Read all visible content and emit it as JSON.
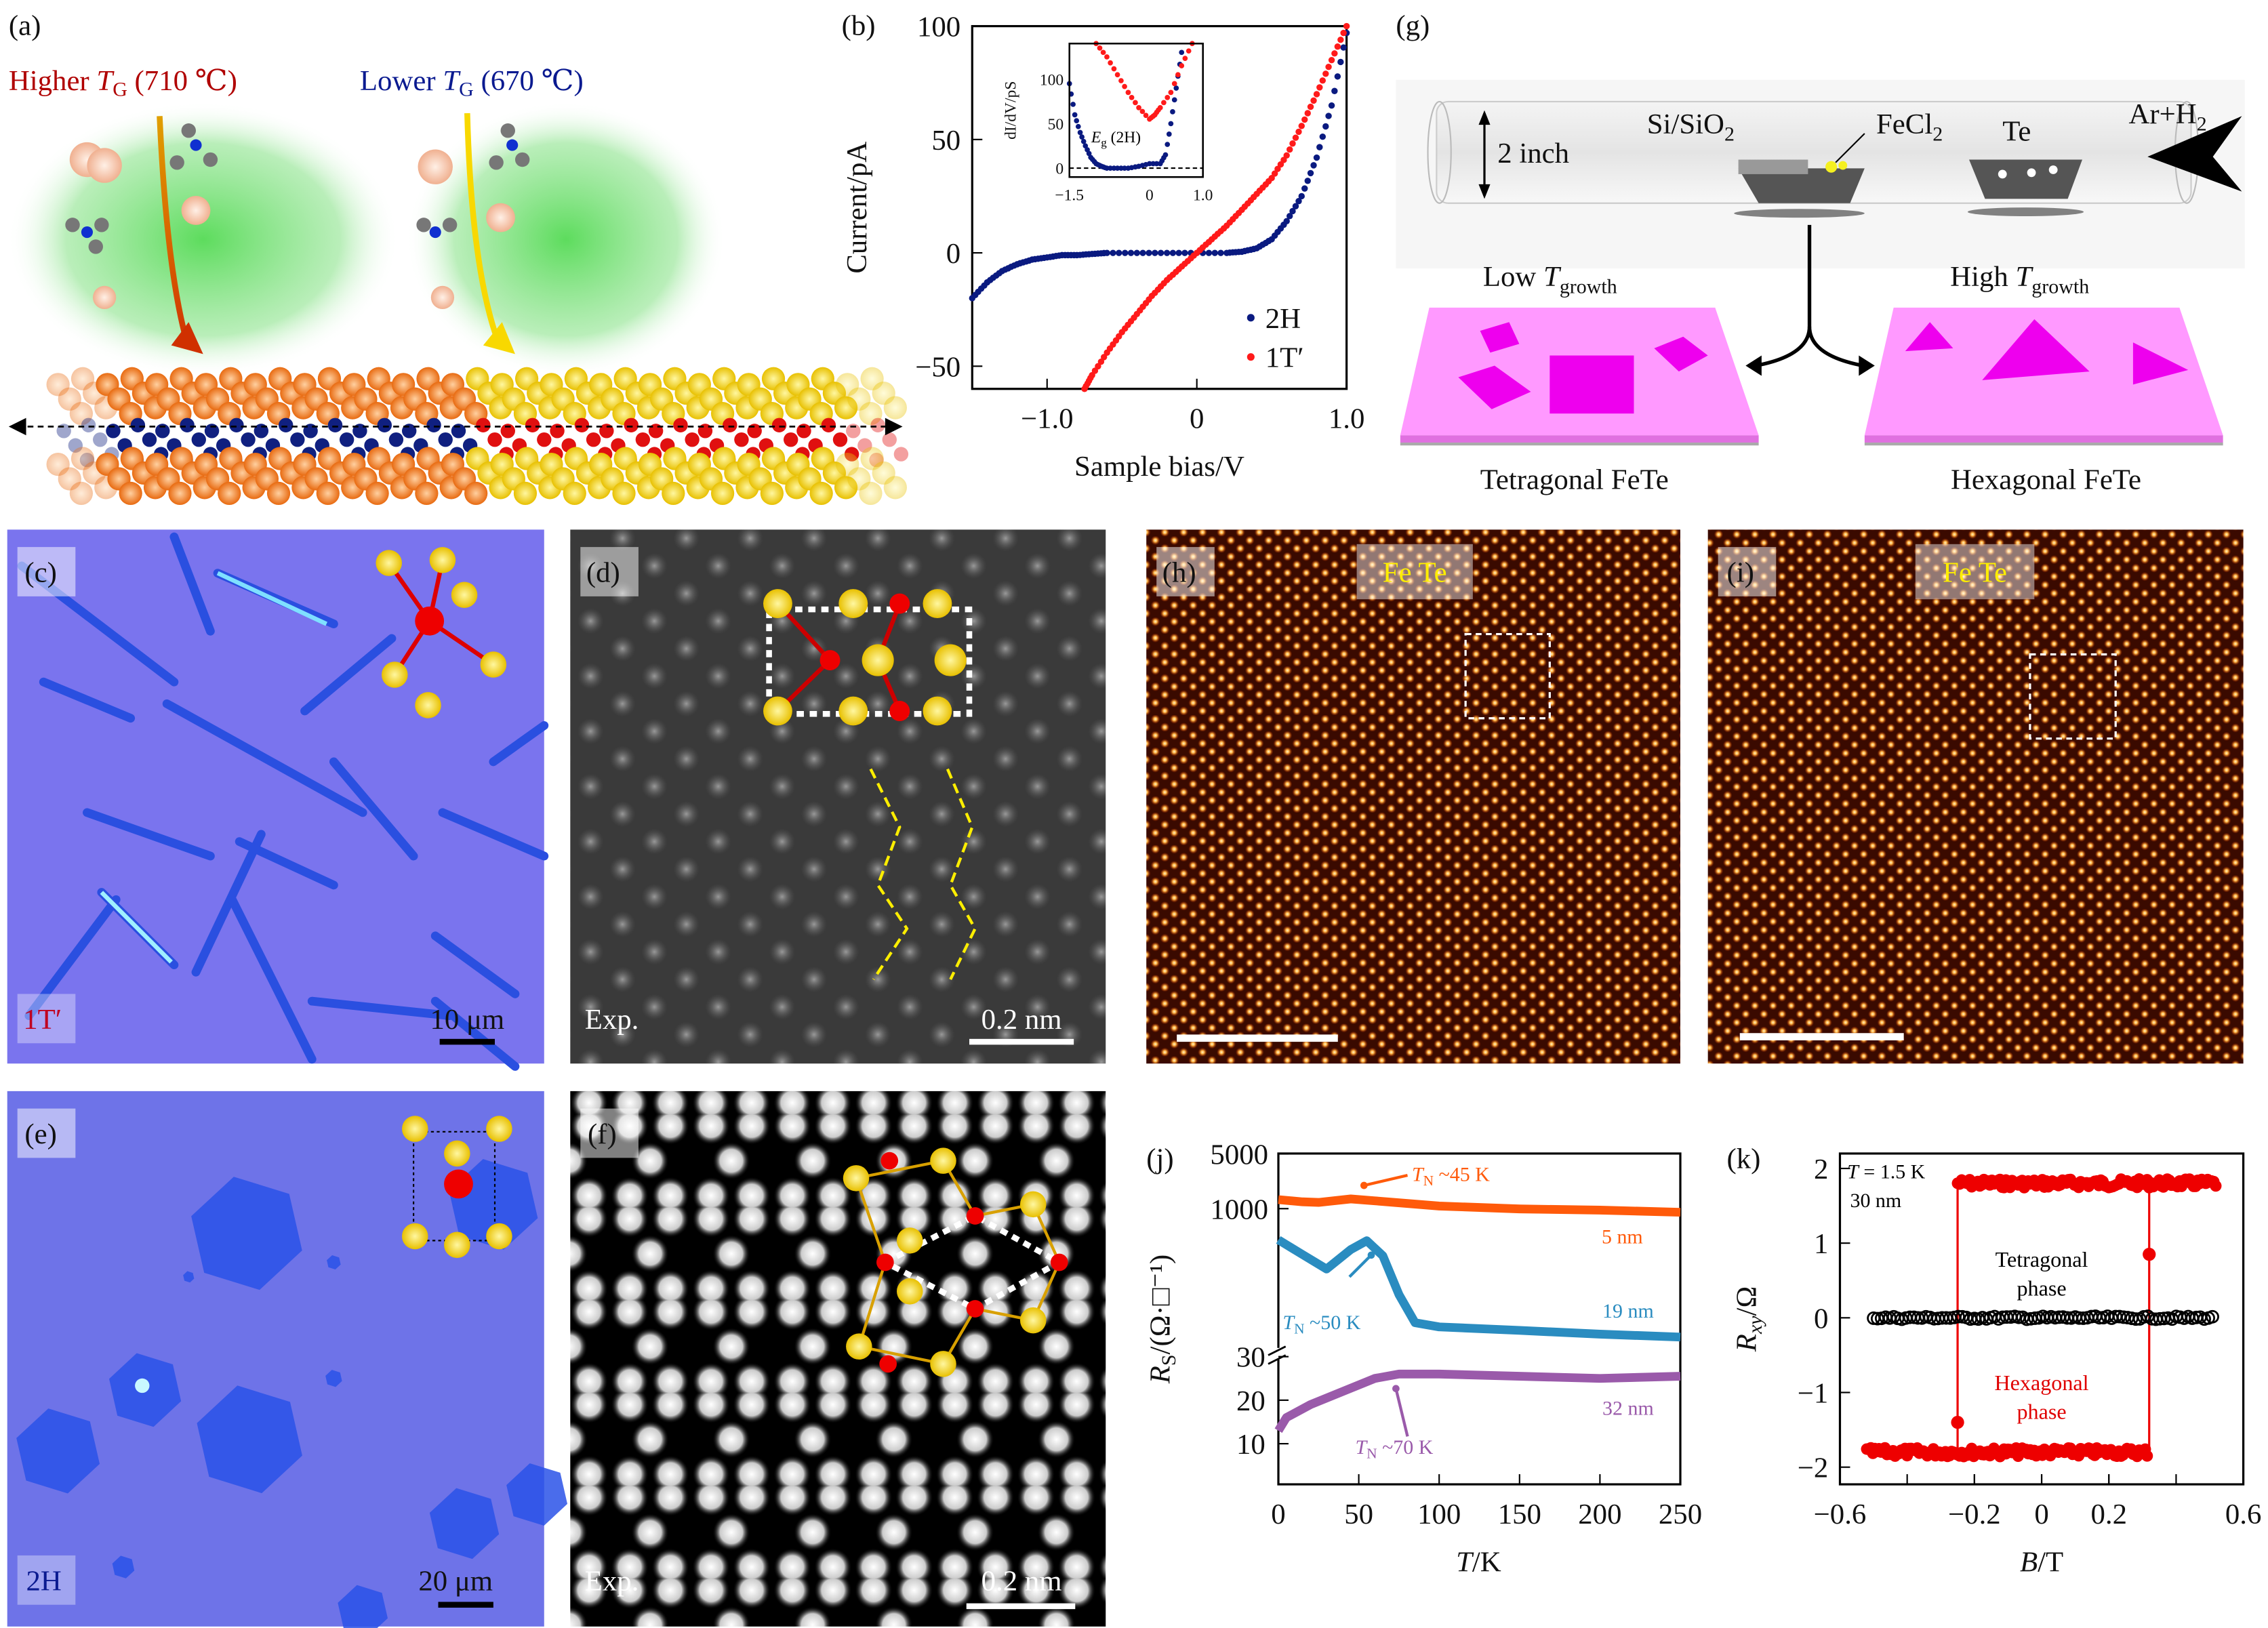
{
  "colors": {
    "red": "#ff1a1a",
    "navy": "#0a1a80",
    "orange": "#ff5a0a",
    "teal": "#2a8cc0",
    "purple": "#9a5aaa",
    "pink": "#ff99ff",
    "magenta": "#ee00ee",
    "dark_red_text": "#b00000"
  },
  "panel_a": {
    "label": "(a)",
    "higher_pre": "Higher ",
    "higher_sym": "T",
    "higher_sub": "G",
    "higher_post": " (710 ℃)",
    "lower_pre": "Lower ",
    "lower_sym": "T",
    "lower_sub": "G",
    "lower_post": " (670 ℃)"
  },
  "panel_g": {
    "label": "(g)",
    "tube_size": "2 inch",
    "substrate": "Si/SiO",
    "substrate_sub": "2",
    "precursor": "FeCl",
    "precursor_sub": "2",
    "source": "Te",
    "gas": "Ar+H",
    "gas_sub": "2",
    "low_pre": "Low ",
    "low_sym": "T",
    "low_sub": "growth",
    "high_pre": "High ",
    "high_sym": "T",
    "high_sub": "growth",
    "left_product": "Tetragonal FeTe",
    "right_product": "Hexagonal FeTe"
  },
  "images": {
    "c": {
      "label": "(c)",
      "phase": "1T′",
      "scale": "10 μm"
    },
    "d": {
      "label": "(d)",
      "tag": "Exp.",
      "scale": "0.2 nm"
    },
    "e": {
      "label": "(e)",
      "phase": "2H",
      "scale": "20 μm"
    },
    "f": {
      "label": "(f)",
      "tag": "Exp.",
      "scale": "0.2 nm"
    },
    "h": {
      "label": "(h)",
      "elements": "Fe  Te"
    },
    "i": {
      "label": "(i)",
      "elements": "Fe  Te"
    }
  },
  "chart_data": [
    {
      "id": "b",
      "type": "scatter",
      "panel_label": "(b)",
      "xlabel": "Sample bias/V",
      "ylabel": "Current/pA",
      "xlim": [
        -1.5,
        1.0
      ],
      "ylim": [
        -60,
        100
      ],
      "xticks": [
        {
          "v": -1.0,
          "t": "−1.0"
        },
        {
          "v": 0,
          "t": "0"
        },
        {
          "v": 1.0,
          "t": "1.0"
        }
      ],
      "yticks": [
        {
          "v": 100,
          "t": "100"
        },
        {
          "v": 50,
          "t": "50"
        },
        {
          "v": 0,
          "t": "0"
        },
        {
          "v": -50,
          "t": "−50"
        }
      ],
      "legend": "bottom-right",
      "series": [
        {
          "name": "2H",
          "color": "#0a1a80",
          "x": [
            -1.5,
            -1.4,
            -1.3,
            -1.2,
            -1.1,
            -1.0,
            -0.9,
            -0.8,
            -0.7,
            -0.6,
            -0.4,
            -0.2,
            0,
            0.2,
            0.3,
            0.4,
            0.5,
            0.6,
            0.7,
            0.8,
            0.9,
            1.0
          ],
          "y": [
            -20,
            -13,
            -8,
            -5,
            -3,
            -2,
            -1,
            -1,
            -0.5,
            0,
            0,
            0,
            0,
            0,
            0.5,
            2,
            6,
            14,
            25,
            42,
            65,
            97
          ]
        },
        {
          "name": "1T′",
          "color": "#ff1a1a",
          "x": [
            -0.75,
            -0.7,
            -0.6,
            -0.5,
            -0.4,
            -0.3,
            -0.2,
            -0.1,
            0,
            0.1,
            0.2,
            0.3,
            0.4,
            0.5,
            0.6,
            0.7,
            0.8,
            0.9,
            1.0
          ],
          "y": [
            -60,
            -54,
            -44,
            -35,
            -27,
            -19,
            -12,
            -6,
            0,
            6,
            12,
            19,
            26,
            33,
            43,
            56,
            70,
            85,
            100
          ]
        }
      ],
      "inset": {
        "type": "scatter",
        "ylabel_num": "dI",
        "ylabel_den": "dV",
        "ylabel_unit": "/pS",
        "annotation_sym": "E",
        "annotation_sub": "g",
        "annotation_post": " (2H)",
        "xlim": [
          -1.5,
          1.0
        ],
        "ylim": [
          -10,
          140
        ],
        "xticks": [
          {
            "v": -1.5,
            "t": "−1.5"
          },
          {
            "v": 0,
            "t": "0"
          },
          {
            "v": 1.0,
            "t": "1.0"
          }
        ],
        "yticks": [
          {
            "v": 100,
            "t": "100"
          },
          {
            "v": 50,
            "t": "50"
          },
          {
            "v": 0,
            "t": "0"
          }
        ],
        "zero_line": "dashed",
        "series": [
          {
            "name": "2H",
            "color": "#0a1a80",
            "x": [
              -1.5,
              -1.4,
              -1.3,
              -1.2,
              -1.1,
              -1.0,
              -0.9,
              -0.8,
              -0.6,
              -0.4,
              -0.2,
              0,
              0.2,
              0.3,
              0.4,
              0.5,
              0.6
            ],
            "y": [
              95,
              60,
              40,
              25,
              12,
              5,
              2,
              0,
              0,
              0,
              2,
              5,
              5,
              15,
              50,
              90,
              130
            ]
          },
          {
            "name": "1T′",
            "color": "#ff1a1a",
            "x": [
              -1.0,
              -0.8,
              -0.6,
              -0.4,
              -0.2,
              0,
              0.1,
              0.2,
              0.4,
              0.6,
              0.8
            ],
            "y": [
              140,
              125,
              105,
              85,
              68,
              55,
              60,
              68,
              85,
              115,
              140
            ]
          }
        ]
      }
    },
    {
      "id": "j",
      "type": "line",
      "panel_label": "(j)",
      "xlabel_sym": "T",
      "xlabel_post": "/K",
      "ylabel_sym": "R",
      "ylabel_sub": "S",
      "ylabel_post": "/(Ω·□⁻¹)",
      "xlim": [
        0,
        250
      ],
      "yscale": "broken: log upper, linear lower",
      "xticks": [
        {
          "v": 0,
          "t": "0"
        },
        {
          "v": 50,
          "t": "50"
        },
        {
          "v": 100,
          "t": "100"
        },
        {
          "v": 150,
          "t": "150"
        },
        {
          "v": 200,
          "t": "200"
        },
        {
          "v": 250,
          "t": "250"
        }
      ],
      "yticks_upper": [
        {
          "v": 5000,
          "t": "5000"
        },
        {
          "v": 1000,
          "t": "1000"
        }
      ],
      "yticks_lower": [
        {
          "v": 30,
          "t": "30"
        },
        {
          "v": 20,
          "t": "20"
        },
        {
          "v": 10,
          "t": "10"
        }
      ],
      "series": [
        {
          "name": "5 nm",
          "segment": "upper",
          "color": "#ff5a0a",
          "annotation": "~45 K",
          "x": [
            0,
            15,
            25,
            45,
            60,
            100,
            150,
            200,
            250
          ],
          "y": [
            1300,
            1220,
            1200,
            1330,
            1260,
            1080,
            990,
            960,
            900
          ]
        },
        {
          "name": "19 nm",
          "segment": "upper",
          "color": "#2a8cc0",
          "annotation": "~50 K",
          "x": [
            0,
            15,
            30,
            45,
            55,
            65,
            75,
            85,
            100,
            150,
            200,
            250
          ],
          "y": [
            400,
            260,
            170,
            300,
            390,
            250,
            80,
            35,
            31,
            28,
            25,
            23
          ]
        },
        {
          "name": "32 nm",
          "segment": "lower",
          "color": "#9a5aaa",
          "annotation": "~70 K",
          "x": [
            0,
            5,
            20,
            40,
            60,
            75,
            100,
            150,
            200,
            250
          ],
          "y": [
            13,
            16,
            19,
            22,
            25,
            26,
            26,
            25.5,
            25,
            25.5
          ]
        }
      ],
      "tn_sym": "T",
      "tn_sub": "N"
    },
    {
      "id": "k",
      "type": "scatter",
      "panel_label": "(k)",
      "xlabel_sym": "B",
      "xlabel_post": "/T",
      "ylabel_sym": "R",
      "ylabel_sub": "xy",
      "ylabel_post": "/Ω",
      "xlim": [
        -0.6,
        0.6
      ],
      "ylim": [
        -2.23,
        2.2
      ],
      "xticks": [
        {
          "v": -0.6,
          "t": "−0.6"
        },
        {
          "v": -0.2,
          "t": "−0.2"
        },
        {
          "v": 0,
          "t": "0"
        },
        {
          "v": 0.2,
          "t": "0.2"
        },
        {
          "v": 0.6,
          "t": "0.6"
        }
      ],
      "yticks": [
        {
          "v": 2,
          "t": "2"
        },
        {
          "v": 1,
          "t": "1"
        },
        {
          "v": 0,
          "t": "0"
        },
        {
          "v": -1,
          "t": "−1"
        },
        {
          "v": -2,
          "t": "−2"
        }
      ],
      "condition_sym": "T",
      "condition_post": " = 1.5 K",
      "thickness": "30 nm",
      "series": [
        {
          "name": "Tetragonal phase",
          "label_line1": "Tetragonal",
          "label_line2": "phase",
          "color": "#000000",
          "marker": "open-circle",
          "branches": [
            {
              "x": [
                -0.5,
                0.52
              ],
              "y": 0
            }
          ]
        },
        {
          "name": "Hexagonal phase",
          "label_line1": "Hexagonal",
          "label_line2": "phase",
          "color": "#ee0000",
          "marker": "filled-circle",
          "branches": [
            {
              "x": [
                -0.25,
                0.52
              ],
              "y": 1.8
            },
            {
              "x": [
                -0.52,
                0.32
              ],
              "y": -1.8
            }
          ],
          "switch_fields": [
            -0.25,
            0.32
          ],
          "switch_points": [
            {
              "x": -0.25,
              "y": -1.4
            },
            {
              "x": 0.32,
              "y": 0.85
            }
          ]
        }
      ]
    }
  ]
}
